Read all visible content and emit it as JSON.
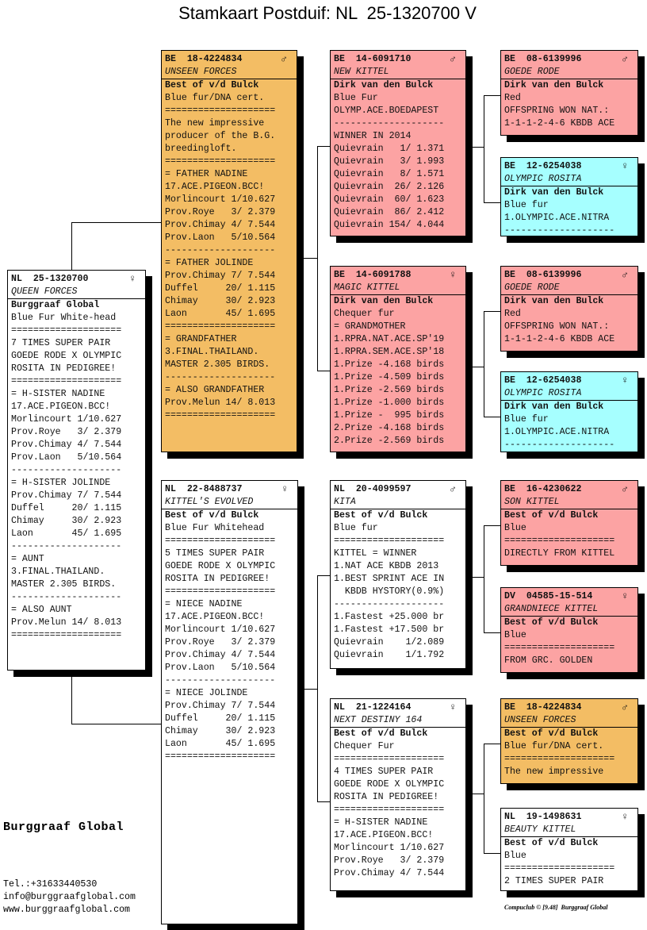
{
  "title": "Stamkaart Postduif: NL  25-1320700 V",
  "colors": {
    "orange": "#f3bd64",
    "pink": "#fca3a3",
    "cyan": "#a6ffff",
    "white": "#ffffff"
  },
  "birds": [
    {
      "ring": "NL  25-1320700",
      "sex": "female",
      "name": "QUEEN FORCES",
      "color": "white",
      "lines": [
        "Burggraaf Global",
        "Blue Fur White-head",
        "====================",
        "7 TIMES SUPER PAIR",
        "GOEDE RODE X OLYMPIC",
        "ROSITA IN PEDIGREE!",
        "====================",
        "= H-SISTER NADINE",
        "17.ACE.PIGEON.BCC!",
        "Morlincourt 1/10.627",
        "Prov.Roye   3/ 2.379",
        "Prov.Chimay 4/ 7.544",
        "Prov.Laon   5/10.564",
        "--------------------",
        "= H-SISTER JOLINDE",
        "Prov.Chimay 7/ 7.544",
        "Duffel     20/ 1.115",
        "Chimay     30/ 2.923",
        "Laon       45/ 1.695",
        "--------------------",
        "= AUNT",
        "3.FINAL.THAILAND.",
        "MASTER 2.305 BIRDS.",
        "--------------------",
        "= ALSO AUNT",
        "Prov.Melun 14/ 8.013",
        "===================="
      ]
    },
    {
      "ring": "BE  18-4224834",
      "sex": "male",
      "name": "UNSEEN FORCES",
      "color": "orange",
      "lines": [
        "Best of v/d Bulck",
        "Blue fur/DNA cert.",
        "====================",
        "The new impressive",
        "producer of the B.G.",
        "breedingloft.",
        "====================",
        "= FATHER NADINE",
        "17.ACE.PIGEON.BCC!",
        "Morlincourt 1/10.627",
        "Prov.Roye   3/ 2.379",
        "Prov.Chimay 4/ 7.544",
        "Prov.Laon   5/10.564",
        "--------------------",
        "= FATHER JOLINDE",
        "Prov.Chimay 7/ 7.544",
        "Duffel     20/ 1.115",
        "Chimay     30/ 2.923",
        "Laon       45/ 1.695",
        "====================",
        "= GRANDFATHER",
        "3.FINAL.THAILAND.",
        "MASTER 2.305 BIRDS.",
        "--------------------",
        "= ALSO GRANDFATHER",
        "Prov.Melun 14/ 8.013",
        "===================="
      ]
    },
    {
      "ring": "NL  22-8488737",
      "sex": "female",
      "name": "KITTEL'S EVOLVED",
      "color": "white",
      "lines": [
        "Best of v/d Bulck",
        "Blue Fur Whitehead",
        "====================",
        "5 TIMES SUPER PAIR",
        "GOEDE RODE X OLYMPIC",
        "ROSITA IN PEDIGREE!",
        "====================",
        "= NIECE NADINE",
        "17.ACE.PIGEON.BCC!",
        "Morlincourt 1/10.627",
        "Prov.Roye   3/ 2.379",
        "Prov.Chimay 4/ 7.544",
        "Prov.Laon   5/10.564",
        "--------------------",
        "= NIECE JOLINDE",
        "Prov.Chimay 7/ 7.544",
        "Duffel     20/ 1.115",
        "Chimay     30/ 2.923",
        "Laon       45/ 1.695",
        "===================="
      ]
    },
    {
      "ring": "BE  14-6091710",
      "sex": "male",
      "name": "NEW KITTEL",
      "color": "pink",
      "lines": [
        "Dirk van den Bulck",
        "Blue Fur",
        "OLYMP.ACE.BOEDAPEST",
        "--------------------",
        "WINNER IN 2014",
        "Quievrain   1/ 1.371",
        "Quievrain   3/ 1.993",
        "Quievrain   8/ 1.571",
        "Quievrain  26/ 2.126",
        "Quievrain  60/ 1.623",
        "Quievrain  86/ 2.412",
        "Quievrain 154/ 4.044"
      ]
    },
    {
      "ring": "BE  14-6091788",
      "sex": "female",
      "name": "MAGIC KITTEL",
      "color": "pink",
      "lines": [
        "Dirk van den Bulck",
        "Chequer fur",
        "= GRANDMOTHER",
        "1.RPRA.NAT.ACE.SP'19",
        "1.RPRA.SEM.ACE.SP'18",
        "1.Prize -4.168 birds",
        "1.Prize -4.509 birds",
        "1.Prize -2.569 birds",
        "1.Prize -1.000 birds",
        "1.Prize -  995 birds",
        "2.Prize -4.168 birds",
        "2.Prize -2.569 birds"
      ]
    },
    {
      "ring": "NL  20-4099597",
      "sex": "male",
      "name": "KITA",
      "color": "white",
      "lines": [
        "Best of v/d Bulck",
        "Blue fur",
        "====================",
        "KITTEL = WINNER",
        "1.NAT ACE KBDB 2013",
        "1.BEST SPRINT ACE IN",
        "  KBDB HYSTORY(0.9%)",
        "--------------------",
        "1.Fastest +25.000 br",
        "1.Fastest +17.500 br",
        "Quievrain    1/2.089",
        "Quievrain    1/1.792"
      ]
    },
    {
      "ring": "NL  21-1224164",
      "sex": "female",
      "name": "NEXT DESTINY 164",
      "color": "white",
      "lines": [
        "Best of v/d Bulck",
        "Chequer Fur",
        "====================",
        "4 TIMES SUPER PAIR",
        "GOEDE RODE X OLYMPIC",
        "ROSITA IN PEDIGREE!",
        "====================",
        "= H-SISTER NADINE",
        "17.ACE.PIGEON.BCC!",
        "Morlincourt 1/10.627",
        "Prov.Roye   3/ 2.379",
        "Prov.Chimay 4/ 7.544"
      ]
    },
    {
      "ring": "BE  08-6139996",
      "sex": "male",
      "name": "GOEDE RODE",
      "color": "pink",
      "lines": [
        "Dirk van den Bulck",
        "Red",
        "OFFSPRING WON NAT.:",
        "1-1-1-2-4-6 KBDB ACE"
      ]
    },
    {
      "ring": "BE  12-6254038",
      "sex": "female",
      "name": "OLYMPIC ROSITA",
      "color": "cyan",
      "lines": [
        "Dirk van den Bulck",
        "Blue fur",
        "1.OLYMPIC.ACE.NITRA",
        "--------------------"
      ]
    },
    {
      "ring": "BE  08-6139996",
      "sex": "male",
      "name": "GOEDE RODE",
      "color": "pink",
      "lines": [
        "Dirk van den Bulck",
        "Red",
        "OFFSPRING WON NAT.:",
        "1-1-1-2-4-6 KBDB ACE"
      ]
    },
    {
      "ring": "BE  12-6254038",
      "sex": "female",
      "name": "OLYMPIC ROSITA",
      "color": "cyan",
      "lines": [
        "Dirk van den Bulck",
        "Blue fur",
        "1.OLYMPIC.ACE.NITRA",
        "--------------------"
      ]
    },
    {
      "ring": "BE  16-4230622",
      "sex": "male",
      "name": "SON KITTEL",
      "color": "pink",
      "lines": [
        "Best of v/d Bulck",
        "Blue",
        "====================",
        "DIRECTLY FROM KITTEL"
      ]
    },
    {
      "ring": "DV  04585-15-514",
      "sex": "female",
      "name": "GRANDNIECE KITTEL",
      "color": "pink",
      "lines": [
        "Best of v/d Bulck",
        "Blue",
        "====================",
        "FROM GRC. GOLDEN"
      ]
    },
    {
      "ring": "BE  18-4224834",
      "sex": "male",
      "name": "UNSEEN FORCES",
      "color": "orange",
      "lines": [
        "Best of v/d Bulck",
        "Blue fur/DNA cert.",
        "====================",
        "The new impressive"
      ]
    },
    {
      "ring": "NL  19-1498631",
      "sex": "female",
      "name": "BEAUTY KITTEL",
      "color": "white",
      "lines": [
        "Best of v/d Bulck",
        "Blue",
        "====================",
        "2 TIMES SUPER PAIR"
      ]
    }
  ],
  "footer": {
    "brand": "Burggraaf Global",
    "phone": "Tel.:+31633440530",
    "email": "info@burggraafglobal.com",
    "website": "www.burggraafglobal.com",
    "credit": "Compuclub © [9.48]  Burggraaf Global"
  }
}
